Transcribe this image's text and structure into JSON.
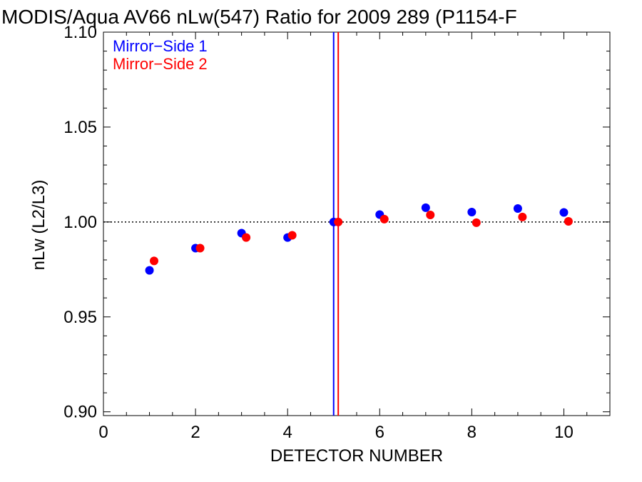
{
  "chart_data": {
    "type": "scatter",
    "title": "MODIS/Aqua AV66 nLw(547) Ratio for 2009 289 (P1154-F",
    "xlabel": "DETECTOR NUMBER",
    "ylabel": "nLw (L2/L3)",
    "xlim": [
      0,
      11
    ],
    "ylim": [
      0.898,
      1.1
    ],
    "xticks": [
      0,
      2,
      4,
      6,
      8,
      10
    ],
    "xtick_labels": [
      "0",
      "2",
      "4",
      "6",
      "8",
      "10"
    ],
    "yticks": [
      0.9,
      0.95,
      1.0,
      1.05,
      1.1
    ],
    "ytick_labels": [
      "0.90",
      "0.95",
      "1.00",
      "1.05",
      "1.10"
    ],
    "reference_line_y": 1.0,
    "legend_position": "top-left",
    "series": [
      {
        "name": "Mirror−Side 1",
        "color": "#0000ff",
        "x": [
          1,
          2,
          3,
          4,
          5,
          6,
          7,
          8,
          9,
          10
        ],
        "y": [
          0.9745,
          0.9862,
          0.9941,
          0.9918,
          1.0,
          1.0039,
          1.0075,
          1.0052,
          1.0071,
          1.005
        ],
        "vertical_line_x": 5.0
      },
      {
        "name": "Mirror−Side 2",
        "color": "#ff0000",
        "x": [
          1.1,
          2.1,
          3.1,
          4.1,
          5.1,
          6.1,
          7.1,
          8.1,
          9.1,
          10.1
        ],
        "y": [
          0.9795,
          0.9862,
          0.9918,
          0.993,
          1.0,
          1.0015,
          1.0037,
          0.9996,
          1.0026,
          1.0003
        ],
        "vertical_line_x": 5.1
      }
    ]
  }
}
